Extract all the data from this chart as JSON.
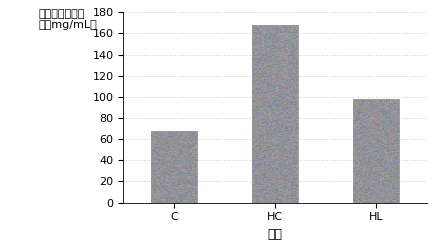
{
  "categories": [
    "C",
    "HC",
    "HL"
  ],
  "values": [
    68,
    168,
    98
  ],
  "bar_color_base": "#888888",
  "title": "",
  "ylabel_line1": "血清总胆固醇含",
  "ylabel_line2": "量（mg/mL）",
  "xlabel": "组别",
  "ylim": [
    0,
    180
  ],
  "yticks": [
    0,
    20,
    40,
    60,
    80,
    100,
    120,
    140,
    160,
    180
  ],
  "background_color": "#ffffff",
  "bar_width": 0.45,
  "ylabel_fontsize": 8,
  "xlabel_fontsize": 9,
  "tick_fontsize": 8,
  "noise_seed": 42
}
